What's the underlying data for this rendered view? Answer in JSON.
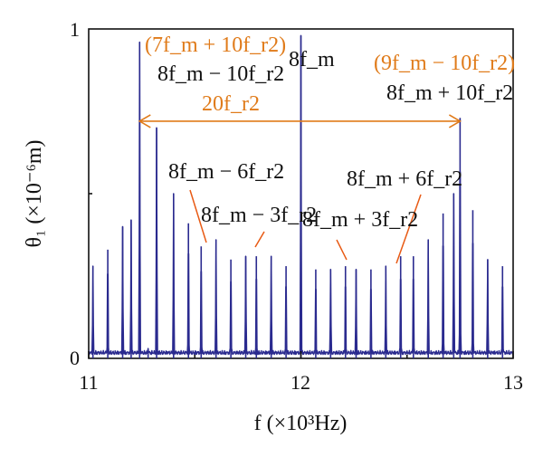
{
  "chart_data": {
    "type": "line",
    "xlabel": "f (×10³Hz)",
    "ylabel": "θ₁ (×10⁻⁶m)",
    "xlim": [
      11,
      13
    ],
    "ylim": [
      0,
      1
    ],
    "x_ticks": [
      "11",
      "12",
      "13"
    ],
    "y_ticks": [
      "0",
      "1"
    ],
    "series_color": "#2b2b8f",
    "annotation_color_dark": "#111111",
    "annotation_color_orange": "#e07b1a",
    "peaks": [
      {
        "x": 11.02,
        "y": 0.28
      },
      {
        "x": 11.09,
        "y": 0.33
      },
      {
        "x": 11.16,
        "y": 0.4
      },
      {
        "x": 11.2,
        "y": 0.42
      },
      {
        "x": 11.24,
        "y": 0.96
      },
      {
        "x": 11.28,
        "y": 0.03
      },
      {
        "x": 11.32,
        "y": 0.7
      },
      {
        "x": 11.4,
        "y": 0.5
      },
      {
        "x": 11.47,
        "y": 0.41
      },
      {
        "x": 11.53,
        "y": 0.34
      },
      {
        "x": 11.6,
        "y": 0.36
      },
      {
        "x": 11.67,
        "y": 0.3
      },
      {
        "x": 11.74,
        "y": 0.31
      },
      {
        "x": 11.79,
        "y": 0.31
      },
      {
        "x": 11.86,
        "y": 0.31
      },
      {
        "x": 11.93,
        "y": 0.28
      },
      {
        "x": 12.0,
        "y": 0.98
      },
      {
        "x": 12.07,
        "y": 0.27
      },
      {
        "x": 12.14,
        "y": 0.27
      },
      {
        "x": 12.21,
        "y": 0.28
      },
      {
        "x": 12.26,
        "y": 0.27
      },
      {
        "x": 12.33,
        "y": 0.27
      },
      {
        "x": 12.4,
        "y": 0.28
      },
      {
        "x": 12.47,
        "y": 0.31
      },
      {
        "x": 12.53,
        "y": 0.31
      },
      {
        "x": 12.6,
        "y": 0.36
      },
      {
        "x": 12.67,
        "y": 0.44
      },
      {
        "x": 12.72,
        "y": 0.5
      },
      {
        "x": 12.75,
        "y": 0.73
      },
      {
        "x": 12.81,
        "y": 0.45
      },
      {
        "x": 12.88,
        "y": 0.3
      },
      {
        "x": 12.95,
        "y": 0.28
      }
    ],
    "span_arrow": {
      "x_from": 11.24,
      "x_to": 12.75,
      "y": 0.72,
      "label": "20f_r2"
    },
    "annotations": [
      {
        "id": "a1",
        "text": "(7f_m + 10f_r2)",
        "color": "orange"
      },
      {
        "id": "a2",
        "text": "8f_m − 10f_r2",
        "color": "dark"
      },
      {
        "id": "a3",
        "text": "8f_m",
        "color": "dark"
      },
      {
        "id": "a4",
        "text": "(9f_m − 10f_r2)",
        "color": "orange"
      },
      {
        "id": "a5",
        "text": "8f_m + 10f_r2",
        "color": "dark"
      },
      {
        "id": "a6",
        "text": "20f_r2",
        "color": "orange"
      },
      {
        "id": "a7",
        "text": "8f_m − 6f_r2",
        "color": "dark"
      },
      {
        "id": "a8",
        "text": "8f_m + 6f_r2",
        "color": "dark"
      },
      {
        "id": "a9",
        "text": "8f_m − 3f_r2",
        "color": "dark"
      },
      {
        "id": "a10",
        "text": "8f_m + 3f_r2",
        "color": "dark"
      }
    ]
  }
}
